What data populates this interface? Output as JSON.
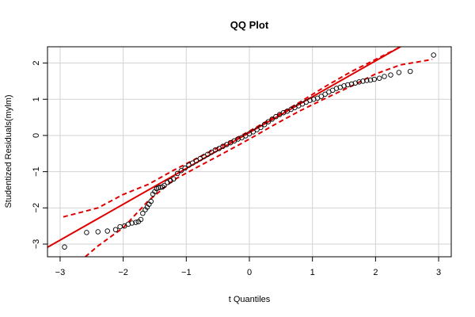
{
  "chart_data": {
    "type": "scatter",
    "title": "QQ Plot",
    "xlabel": "t Quantiles",
    "ylabel": "Studentized Residuals(mylm)",
    "xlim": [
      -3.2,
      3.2
    ],
    "ylim": [
      -3.35,
      2.45
    ],
    "x_ticks": [
      -3,
      -2,
      -1,
      0,
      1,
      2,
      3
    ],
    "y_ticks": [
      -3,
      -2,
      -1,
      0,
      1,
      2
    ],
    "grid": true,
    "colors": {
      "points": "#000000",
      "reference_line": "#e00000",
      "envelope": "#e00000",
      "grid": "#d3d3d3"
    },
    "reference_line": {
      "intercept": 0.08,
      "slope": 0.99
    },
    "envelope": {
      "upper": [
        [
          -2.95,
          -2.25
        ],
        [
          -2.4,
          -2.0
        ],
        [
          -2.0,
          -1.63
        ],
        [
          -1.6,
          -1.35
        ],
        [
          -1.2,
          -0.96
        ],
        [
          -0.8,
          -0.6
        ],
        [
          -0.4,
          -0.25
        ],
        [
          0,
          0.12
        ],
        [
          0.4,
          0.52
        ],
        [
          0.8,
          0.92
        ],
        [
          1.2,
          1.35
        ],
        [
          1.6,
          1.75
        ],
        [
          2.0,
          2.1
        ],
        [
          2.4,
          2.45
        ]
      ],
      "lower": [
        [
          -2.6,
          -3.35
        ],
        [
          -2.4,
          -3.05
        ],
        [
          -2.0,
          -2.55
        ],
        [
          -1.6,
          -1.8
        ],
        [
          -1.2,
          -1.23
        ],
        [
          -0.8,
          -0.85
        ],
        [
          -0.4,
          -0.48
        ],
        [
          0,
          -0.1
        ],
        [
          0.4,
          0.3
        ],
        [
          0.8,
          0.68
        ],
        [
          1.2,
          1.02
        ],
        [
          1.6,
          1.35
        ],
        [
          2.0,
          1.7
        ],
        [
          2.4,
          1.95
        ],
        [
          2.9,
          2.1
        ]
      ]
    },
    "points": {
      "x": [
        -2.93,
        -2.58,
        -2.4,
        -2.25,
        -2.12,
        -2.05,
        -1.98,
        -1.92,
        -1.86,
        -1.8,
        -1.76,
        -1.72,
        -1.69,
        -1.65,
        -1.62,
        -1.59,
        -1.56,
        -1.53,
        -1.5,
        -1.47,
        -1.44,
        -1.41,
        -1.38,
        -1.35,
        -1.3,
        -1.25,
        -1.2,
        -1.14,
        -1.08,
        -1.02,
        -0.96,
        -0.9,
        -0.84,
        -0.78,
        -0.72,
        -0.66,
        -0.6,
        -0.54,
        -0.48,
        -0.42,
        -0.36,
        -0.3,
        -0.24,
        -0.18,
        -0.12,
        -0.06,
        0.0,
        0.06,
        0.12,
        0.18,
        0.24,
        0.3,
        0.36,
        0.42,
        0.48,
        0.54,
        0.6,
        0.66,
        0.72,
        0.78,
        0.84,
        0.9,
        0.96,
        1.02,
        1.08,
        1.14,
        1.2,
        1.26,
        1.32,
        1.38,
        1.44,
        1.5,
        1.56,
        1.62,
        1.68,
        1.74,
        1.8,
        1.86,
        1.92,
        1.98,
        2.06,
        2.14,
        2.24,
        2.37,
        2.55,
        2.92
      ],
      "y": [
        -3.08,
        -2.68,
        -2.66,
        -2.64,
        -2.6,
        -2.52,
        -2.5,
        -2.45,
        -2.42,
        -2.4,
        -2.38,
        -2.32,
        -2.15,
        -2.05,
        -1.98,
        -1.9,
        -1.82,
        -1.62,
        -1.55,
        -1.47,
        -1.44,
        -1.43,
        -1.42,
        -1.38,
        -1.3,
        -1.25,
        -1.2,
        -1.05,
        -0.97,
        -0.9,
        -0.82,
        -0.76,
        -0.7,
        -0.64,
        -0.58,
        -0.52,
        -0.46,
        -0.4,
        -0.36,
        -0.3,
        -0.25,
        -0.2,
        -0.15,
        -0.1,
        -0.06,
        -0.01,
        0.05,
        0.1,
        0.16,
        0.22,
        0.3,
        0.38,
        0.45,
        0.52,
        0.58,
        0.63,
        0.67,
        0.72,
        0.77,
        0.82,
        0.87,
        0.92,
        0.97,
        1.0,
        1.03,
        1.08,
        1.14,
        1.2,
        1.25,
        1.3,
        1.33,
        1.37,
        1.4,
        1.42,
        1.45,
        1.48,
        1.5,
        1.52,
        1.53,
        1.55,
        1.58,
        1.63,
        1.67,
        1.74,
        1.77,
        2.22
      ]
    }
  }
}
